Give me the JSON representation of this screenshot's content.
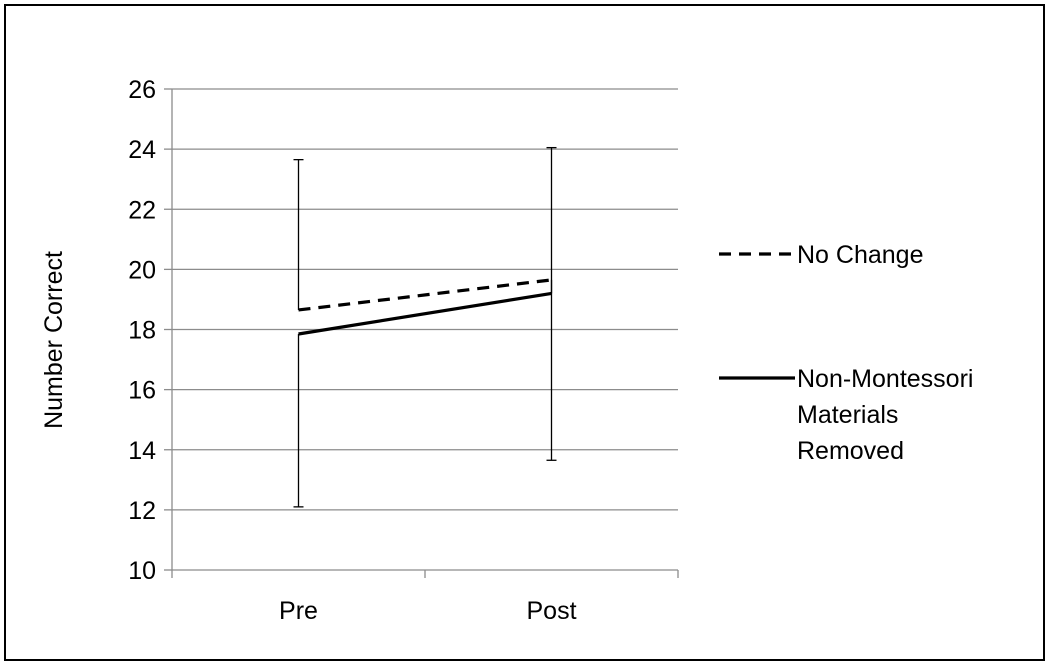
{
  "chart_data": {
    "type": "line",
    "categories": [
      "Pre",
      "Post"
    ],
    "ylabel": "Number Correct",
    "xlabel": "",
    "title": "",
    "ylim": [
      10,
      26
    ],
    "yticks": [
      10,
      12,
      14,
      16,
      18,
      20,
      22,
      24,
      26
    ],
    "grid": "horizontal",
    "legend_position": "right",
    "series": [
      {
        "name": "No Change",
        "style": "dashed",
        "color": "#000000",
        "values": [
          18.65,
          19.65
        ],
        "error_low": [
          null,
          13.65
        ],
        "error_high": [
          23.65,
          null
        ]
      },
      {
        "name": "Non-Montessori Materials Removed",
        "legend_lines": [
          "Non-Montessori",
          "Materials",
          "Removed"
        ],
        "style": "solid",
        "color": "#000000",
        "values": [
          17.85,
          19.2
        ],
        "error_low": [
          12.1,
          null
        ],
        "error_high": [
          null,
          24.05
        ]
      }
    ]
  }
}
